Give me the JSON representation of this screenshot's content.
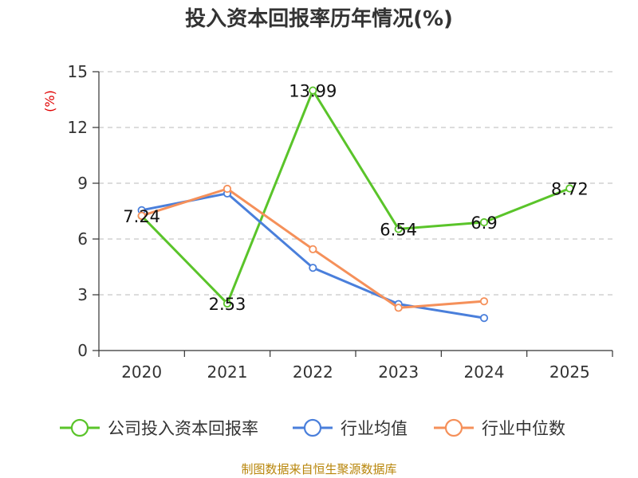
{
  "chart_data": {
    "type": "line",
    "title": "投入资本回报率历年情况(%)",
    "ylabel": "(%)",
    "xlabel": "",
    "categories": [
      "2020",
      "2021",
      "2022",
      "2023",
      "2024",
      "2025"
    ],
    "ylim": [
      0,
      15
    ],
    "yticks": [
      0,
      3,
      6,
      9,
      12,
      15
    ],
    "grid": true,
    "legend_position": "bottom",
    "series": [
      {
        "name": "公司投入资本回报率",
        "color": "#5ac42a",
        "values": [
          7.24,
          2.53,
          13.99,
          6.54,
          6.9,
          8.72
        ],
        "labels": [
          "7.24",
          "2.53",
          "13.99",
          "6.54",
          "6.9",
          "8.72"
        ]
      },
      {
        "name": "行业均值",
        "color": "#4a7fdb",
        "values": [
          7.55,
          8.45,
          4.45,
          2.5,
          1.75,
          null
        ]
      },
      {
        "name": "行业中位数",
        "color": "#f5905a",
        "values": [
          7.25,
          8.7,
          5.45,
          2.3,
          2.65,
          null
        ]
      }
    ]
  },
  "source": "制图数据来自恒生聚源数据库"
}
